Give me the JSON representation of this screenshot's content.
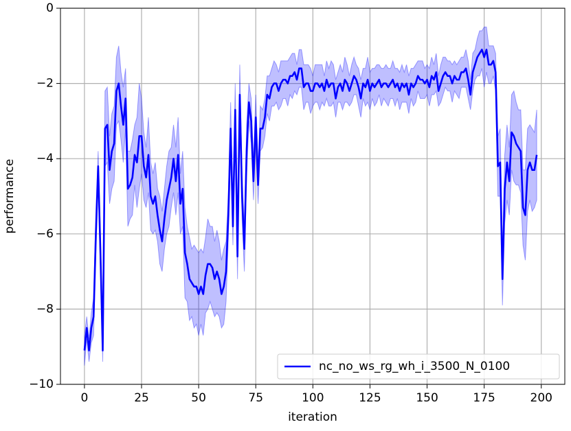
{
  "chart_data": {
    "type": "line",
    "xlabel": "iteration",
    "ylabel": "performance",
    "xlim": [
      -10.5,
      210.3
    ],
    "ylim": [
      -10,
      0
    ],
    "xticks": [
      0,
      25,
      50,
      75,
      100,
      125,
      150,
      175,
      200
    ],
    "yticks": [
      {
        "value": -10,
        "label": "−10"
      },
      {
        "value": -8,
        "label": "−8"
      },
      {
        "value": -6,
        "label": "−6"
      },
      {
        "value": -4,
        "label": "−4"
      },
      {
        "value": -2,
        "label": "−2"
      },
      0
    ],
    "grid": true,
    "legend": "lower right",
    "x": [
      0,
      1,
      2,
      3,
      4,
      5,
      6,
      7,
      8,
      9,
      10,
      11,
      12,
      13,
      14,
      15,
      16,
      17,
      18,
      19,
      20,
      21,
      22,
      23,
      24,
      25,
      26,
      27,
      28,
      29,
      30,
      31,
      32,
      33,
      34,
      35,
      36,
      37,
      38,
      39,
      40,
      41,
      42,
      43,
      44,
      45,
      46,
      47,
      48,
      49,
      50,
      51,
      52,
      53,
      54,
      55,
      56,
      57,
      58,
      59,
      60,
      61,
      62,
      63,
      64,
      65,
      66,
      67,
      68,
      69,
      70,
      71,
      72,
      73,
      74,
      75,
      76,
      77,
      78,
      79,
      80,
      81,
      82,
      83,
      84,
      85,
      86,
      87,
      88,
      89,
      90,
      91,
      92,
      93,
      94,
      95,
      96,
      97,
      98,
      99,
      100,
      101,
      102,
      103,
      104,
      105,
      106,
      107,
      108,
      109,
      110,
      111,
      112,
      113,
      114,
      115,
      116,
      117,
      118,
      119,
      120,
      121,
      122,
      123,
      124,
      125,
      126,
      127,
      128,
      129,
      130,
      131,
      132,
      133,
      134,
      135,
      136,
      137,
      138,
      139,
      140,
      141,
      142,
      143,
      144,
      145,
      146,
      147,
      148,
      149,
      150,
      151,
      152,
      153,
      154,
      155,
      156,
      157,
      158,
      159,
      160,
      161,
      162,
      163,
      164,
      165,
      166,
      167,
      168,
      169,
      170,
      171,
      172,
      173,
      174,
      175,
      176,
      177,
      178,
      179,
      180,
      181,
      182,
      183,
      184,
      185,
      186,
      187,
      188,
      189,
      190,
      191,
      192,
      193,
      194,
      195,
      196,
      197,
      198
    ],
    "series": [
      {
        "name": "nc_no_ws_rg_wh_i_3500_N_0100",
        "color": "#0000ff",
        "values": [
          -9.1,
          -8.5,
          -9.1,
          -8.5,
          -8.2,
          -6.0,
          -4.2,
          -6.5,
          -9.1,
          -3.2,
          -3.1,
          -4.3,
          -3.8,
          -3.6,
          -2.2,
          -2.0,
          -2.6,
          -3.1,
          -2.4,
          -4.8,
          -4.7,
          -4.5,
          -3.9,
          -4.1,
          -3.4,
          -3.4,
          -4.2,
          -4.5,
          -3.9,
          -5.0,
          -5.2,
          -5.0,
          -5.5,
          -5.9,
          -6.2,
          -5.6,
          -5.1,
          -4.8,
          -4.5,
          -4.0,
          -4.6,
          -3.9,
          -5.2,
          -4.8,
          -6.5,
          -6.8,
          -7.2,
          -7.3,
          -7.4,
          -7.4,
          -7.6,
          -7.4,
          -7.6,
          -7.1,
          -6.8,
          -6.8,
          -6.9,
          -7.2,
          -7.0,
          -7.2,
          -7.6,
          -7.4,
          -7.0,
          -5.5,
          -3.2,
          -5.8,
          -2.7,
          -6.6,
          -2.3,
          -5.0,
          -6.4,
          -3.8,
          -2.5,
          -3.0,
          -4.6,
          -2.9,
          -4.7,
          -3.2,
          -3.2,
          -2.9,
          -2.3,
          -2.4,
          -2.1,
          -2.0,
          -2.0,
          -2.2,
          -2.0,
          -1.9,
          -1.9,
          -2.0,
          -1.8,
          -1.8,
          -1.7,
          -1.9,
          -1.6,
          -1.6,
          -2.1,
          -2.0,
          -2.0,
          -2.2,
          -2.2,
          -2.0,
          -2.0,
          -2.1,
          -2.0,
          -2.2,
          -1.9,
          -2.1,
          -2.0,
          -2.0,
          -2.4,
          -2.1,
          -2.0,
          -2.2,
          -1.9,
          -2.0,
          -2.2,
          -2.0,
          -1.8,
          -1.9,
          -2.1,
          -2.4,
          -2.0,
          -2.1,
          -1.9,
          -2.2,
          -2.0,
          -2.1,
          -2.0,
          -1.9,
          -2.1,
          -2.0,
          -2.0,
          -2.1,
          -2.0,
          -1.9,
          -2.1,
          -2.0,
          -2.2,
          -2.0,
          -2.1,
          -2.0,
          -2.3,
          -2.0,
          -2.1,
          -2.0,
          -1.8,
          -1.9,
          -1.9,
          -2.0,
          -1.9,
          -2.1,
          -1.8,
          -1.9,
          -1.7,
          -2.2,
          -2.0,
          -1.8,
          -1.7,
          -1.8,
          -1.8,
          -2.0,
          -1.8,
          -1.9,
          -1.9,
          -1.7,
          -1.7,
          -1.6,
          -1.9,
          -2.3,
          -1.7,
          -1.5,
          -1.3,
          -1.2,
          -1.1,
          -1.3,
          -1.1,
          -1.5,
          -1.5,
          -1.4,
          -1.7,
          -4.2,
          -4.1,
          -7.2,
          -4.8,
          -4.1,
          -4.6,
          -3.3,
          -3.4,
          -3.6,
          -3.7,
          -3.8,
          -5.3,
          -5.5,
          -4.3,
          -4.1,
          -4.3,
          -4.3,
          -3.9
        ],
        "error": [
          0.4,
          0.3,
          0.3,
          0.4,
          0.5,
          0.6,
          0.4,
          0.5,
          0.3,
          1.0,
          1.0,
          0.9,
          1.0,
          1.0,
          0.9,
          1.0,
          0.9,
          1.0,
          0.8,
          1.0,
          0.9,
          1.0,
          0.8,
          1.2,
          1.4,
          1.0,
          0.9,
          0.8,
          1.0,
          0.9,
          0.8,
          0.9,
          0.7,
          0.9,
          0.8,
          0.8,
          0.9,
          1.0,
          0.8,
          0.9,
          0.9,
          1.0,
          0.8,
          1.0,
          1.2,
          1.0,
          1.1,
          0.9,
          1.1,
          1.0,
          1.1,
          1.0,
          1.1,
          1.0,
          1.2,
          1.0,
          1.1,
          1.0,
          1.1,
          1.0,
          0.9,
          1.0,
          0.8,
          0.6,
          0.7,
          0.5,
          0.7,
          0.6,
          0.8,
          0.6,
          0.6,
          0.7,
          0.5,
          0.6,
          0.5,
          0.6,
          0.5,
          0.6,
          0.5,
          0.5,
          0.5,
          0.6,
          0.5,
          0.6,
          0.5,
          0.5,
          0.6,
          0.5,
          0.5,
          0.6,
          0.5,
          0.6,
          0.5,
          0.4,
          0.5,
          0.5,
          0.6,
          0.5,
          0.5,
          0.6,
          0.4,
          0.5,
          0.5,
          0.6,
          0.5,
          0.4,
          0.5,
          0.5,
          0.6,
          0.5,
          0.5,
          0.4,
          0.5,
          0.5,
          0.6,
          0.5,
          0.4,
          0.5,
          0.5,
          0.4,
          0.5,
          0.5,
          0.4,
          0.5,
          0.6,
          0.5,
          0.4,
          0.5,
          0.5,
          0.4,
          0.5,
          0.4,
          0.5,
          0.5,
          0.4,
          0.5,
          0.5,
          0.4,
          0.5,
          0.5,
          0.4,
          0.5,
          0.5,
          0.4,
          0.5,
          0.5,
          0.4,
          0.5,
          0.5,
          0.4,
          0.4,
          0.5,
          0.5,
          0.4,
          0.5,
          0.4,
          0.5,
          0.5,
          0.4,
          0.4,
          0.4,
          0.5,
          0.4,
          0.4,
          0.5,
          0.4,
          0.4,
          0.5,
          0.5,
          0.4,
          0.5,
          0.4,
          0.5,
          0.6,
          0.5,
          0.8,
          0.6,
          0.5,
          0.5,
          0.4,
          0.5,
          0.8,
          0.9,
          0.7,
          0.9,
          1.0,
          0.9,
          1.0,
          1.2,
          1.1,
          1.0,
          1.1,
          1.0,
          1.2,
          1.1,
          1.0,
          1.1,
          1.0,
          1.2
        ]
      }
    ]
  }
}
